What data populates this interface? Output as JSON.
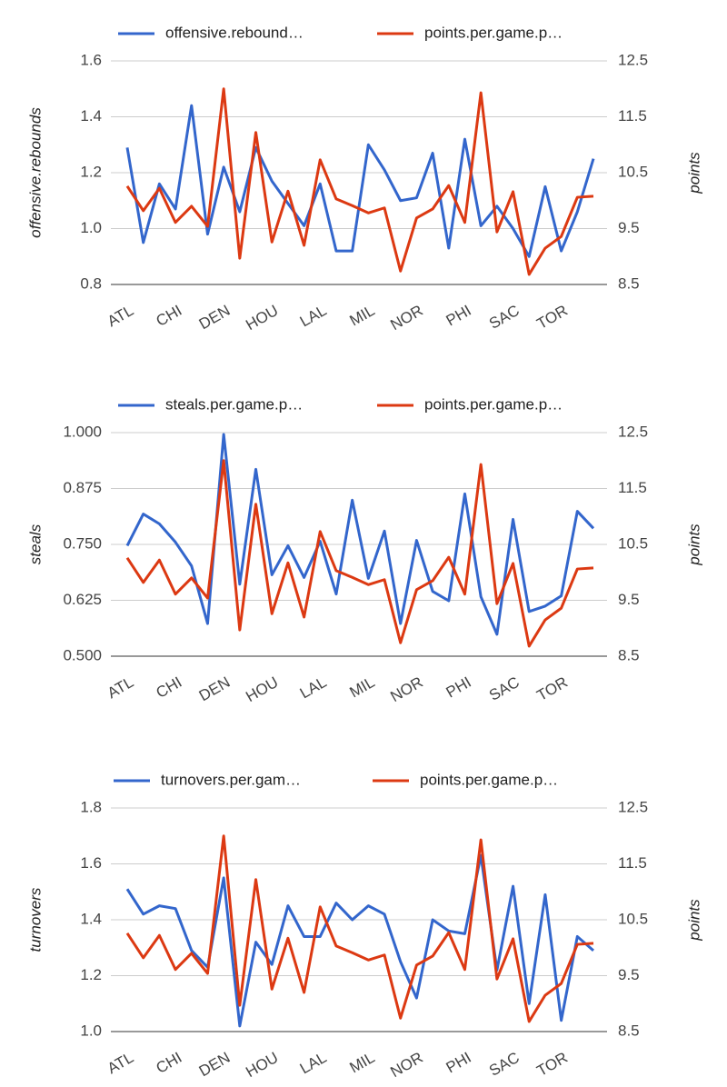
{
  "chart_data": [
    {
      "type": "line",
      "categories": [
        "ATL",
        null,
        null,
        "CHI",
        null,
        null,
        "DEN",
        null,
        null,
        "HOU",
        null,
        null,
        "LAL",
        null,
        null,
        "MIL",
        null,
        null,
        "NOR",
        null,
        null,
        "PHI",
        null,
        null,
        "SAC",
        null,
        null,
        "TOR",
        null,
        null
      ],
      "series": [
        {
          "name": "offensive.rebound…",
          "color": "#3366cc",
          "values": [
            1.29,
            0.95,
            1.16,
            1.07,
            1.44,
            0.98,
            1.22,
            1.06,
            1.29,
            1.17,
            1.09,
            1.01,
            1.16,
            0.92,
            0.92,
            1.3,
            1.21,
            1.1,
            1.11,
            1.27,
            0.93,
            1.32,
            1.01,
            1.08,
            1.0,
            0.9,
            1.15,
            0.92,
            1.06,
            1.25
          ]
        },
        {
          "name": "points.per.game.p…",
          "color": "#dc3912",
          "axis": "y2",
          "values": [
            10.26,
            9.82,
            10.22,
            9.61,
            9.9,
            9.54,
            12.0,
            8.97,
            11.22,
            9.26,
            10.17,
            9.2,
            10.73,
            10.03,
            9.91,
            9.78,
            9.87,
            8.74,
            9.69,
            9.85,
            10.27,
            9.61,
            11.93,
            9.44,
            10.16,
            8.68,
            9.15,
            9.36,
            10.06,
            10.08
          ]
        }
      ],
      "ylabel": "offensive.rebounds",
      "y2label": "points",
      "ylim": [
        0.8,
        1.6
      ],
      "yticks": [
        0.8,
        {
          "value": 1,
          "label": "1.0"
        },
        1.2,
        1.4,
        1.6
      ],
      "y2lim": [
        8.5,
        12.5
      ],
      "y2ticks": [
        8.5,
        9.5,
        10.5,
        11.5,
        12.5
      ],
      "grid": true
    },
    {
      "type": "line",
      "categories": [
        "ATL",
        null,
        null,
        "CHI",
        null,
        null,
        "DEN",
        null,
        null,
        "HOU",
        null,
        null,
        "LAL",
        null,
        null,
        "MIL",
        null,
        null,
        "NOR",
        null,
        null,
        "PHI",
        null,
        null,
        "SAC",
        null,
        null,
        "TOR",
        null,
        null
      ],
      "series": [
        {
          "name": "steals.per.game.p…",
          "color": "#3366cc",
          "values": [
            0.747,
            0.818,
            0.796,
            0.755,
            0.702,
            0.573,
            0.996,
            0.661,
            0.918,
            0.682,
            0.747,
            0.676,
            0.757,
            0.639,
            0.849,
            0.674,
            0.78,
            0.573,
            0.759,
            0.645,
            0.624,
            0.863,
            0.633,
            0.549,
            0.806,
            0.6,
            0.612,
            0.635,
            0.824,
            0.786
          ]
        },
        {
          "name": "points.per.game.p…",
          "color": "#dc3912",
          "axis": "y2",
          "values": [
            10.26,
            9.82,
            10.22,
            9.61,
            9.9,
            9.54,
            12.0,
            8.97,
            11.22,
            9.26,
            10.17,
            9.2,
            10.73,
            10.03,
            9.91,
            9.78,
            9.87,
            8.74,
            9.69,
            9.85,
            10.27,
            9.61,
            11.93,
            9.44,
            10.16,
            8.68,
            9.15,
            9.36,
            10.06,
            10.08
          ]
        }
      ],
      "ylabel": "steals",
      "y2label": "points",
      "ylim": [
        0.5,
        1.0
      ],
      "yticks": [
        {
          "value": 0.5,
          "label": "0.500"
        },
        0.625,
        {
          "value": 0.75,
          "label": "0.750"
        },
        0.875,
        {
          "value": 1,
          "label": "1.000"
        }
      ],
      "y2lim": [
        8.5,
        12.5
      ],
      "y2ticks": [
        8.5,
        9.5,
        10.5,
        11.5,
        12.5
      ],
      "grid": true
    },
    {
      "type": "line",
      "categories": [
        "ATL",
        null,
        null,
        "CHI",
        null,
        null,
        "DEN",
        null,
        null,
        "HOU",
        null,
        null,
        "LAL",
        null,
        null,
        "MIL",
        null,
        null,
        "NOR",
        null,
        null,
        "PHI",
        null,
        null,
        "SAC",
        null,
        null,
        "TOR",
        null,
        null
      ],
      "series": [
        {
          "name": "turnovers.per.gam…",
          "color": "#3366cc",
          "values": [
            1.51,
            1.42,
            1.45,
            1.44,
            1.29,
            1.23,
            1.55,
            1.02,
            1.32,
            1.24,
            1.45,
            1.34,
            1.34,
            1.46,
            1.4,
            1.45,
            1.42,
            1.25,
            1.12,
            1.4,
            1.36,
            1.35,
            1.63,
            1.22,
            1.52,
            1.1,
            1.49,
            1.04,
            1.34,
            1.29
          ]
        },
        {
          "name": "points.per.game.p…",
          "color": "#dc3912",
          "axis": "y2",
          "values": [
            10.26,
            9.82,
            10.22,
            9.61,
            9.9,
            9.54,
            12.0,
            8.97,
            11.22,
            9.26,
            10.17,
            9.2,
            10.73,
            10.03,
            9.91,
            9.78,
            9.87,
            8.74,
            9.69,
            9.85,
            10.27,
            9.61,
            11.93,
            9.44,
            10.16,
            8.68,
            9.15,
            9.36,
            10.06,
            10.08
          ]
        }
      ],
      "ylabel": "turnovers",
      "y2label": "points",
      "ylim": [
        1.0,
        1.8
      ],
      "yticks": [
        {
          "value": 1,
          "label": "1.0"
        },
        1.2,
        1.4,
        1.6,
        1.8
      ],
      "y2lim": [
        8.5,
        12.5
      ],
      "y2ticks": [
        8.5,
        9.5,
        10.5,
        11.5,
        12.5
      ],
      "grid": true
    }
  ]
}
